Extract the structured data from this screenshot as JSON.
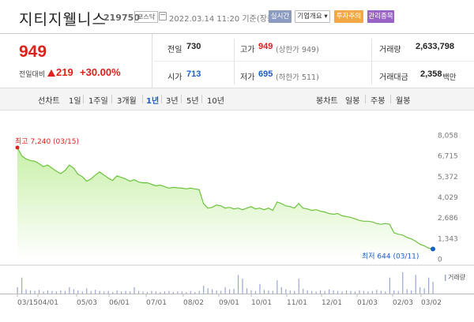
{
  "header": {
    "stock_name": "지티지웰니스",
    "stock_code": "219750",
    "market": "코스닥",
    "timestamp": "2022.03.14 11:20 기준(장중)",
    "realtime_label": "실시간",
    "company_label": "기업개요 ▾",
    "caution_label": "투자주의",
    "admin_label": "관리종목"
  },
  "price": {
    "current": "949",
    "change_label": "전일대비",
    "change_value": "219",
    "change_pct": "+30.00%"
  },
  "stats": {
    "prev_label": "전일",
    "prev_value": "730",
    "open_label": "시가",
    "open_value": "713",
    "high_label": "고가",
    "high_value": "949",
    "high_sub": "(상한가 949)",
    "low_label": "저가",
    "low_value": "695",
    "low_sub": "(하한가 511)",
    "volume_label": "거래량",
    "volume_value": "2,633,798",
    "amount_label": "거래대금",
    "amount_value": "2,358",
    "amount_unit": "백만"
  },
  "toolbar": {
    "line_chart_label": "선차트",
    "periods": [
      "1일",
      "1주일",
      "3개월",
      "1년",
      "3년",
      "5년",
      "10년"
    ],
    "active_period": "1년",
    "candle_label": "봉차트",
    "candles": [
      "일봉",
      "주봉",
      "월봉"
    ]
  },
  "colors": {
    "up": "#e0211b",
    "down": "#1a5fc7",
    "line": "#6cc43c",
    "fill_top": "#c8f0a8",
    "volume": "#9aa6d6"
  },
  "chart_data": {
    "type": "area",
    "y_ticks": [
      "8,058",
      "6,715",
      "5,372",
      "4,029",
      "2,686",
      "1,343",
      "0"
    ],
    "ylim": [
      0,
      8058
    ],
    "x_ticks": [
      "03/15",
      "04/01",
      "05/03",
      "06/01",
      "07/01",
      "08/02",
      "09/01",
      "10/01",
      "11/01",
      "12/01",
      "01/03",
      "02/03",
      "03/02"
    ],
    "annotations": {
      "high": {
        "label": "최고 7,240 (03/15)",
        "value": 7240
      },
      "low": {
        "label": "최저 644 (03/11)",
        "value": 644
      }
    },
    "volume_legend": "거래량",
    "price_series": [
      7240,
      6700,
      6500,
      6400,
      6350,
      6200,
      6000,
      6100,
      5900,
      5700,
      5550,
      5750,
      6100,
      5900,
      5500,
      5350,
      5050,
      5200,
      5450,
      5650,
      5450,
      5250,
      5100,
      5400,
      5300,
      5200,
      5050,
      5150,
      5000,
      4950,
      4950,
      4850,
      4750,
      4800,
      4700,
      4600,
      4650,
      4620,
      4600,
      4550,
      4600,
      4550,
      4500,
      3600,
      3300,
      3350,
      3500,
      3450,
      3300,
      3350,
      3250,
      3300,
      3200,
      3300,
      3400,
      3250,
      3300,
      3200,
      3300,
      3150,
      3700,
      3600,
      3450,
      3400,
      3300,
      3600,
      3300,
      3250,
      3150,
      3200,
      3100,
      3050,
      2950,
      2900,
      2950,
      2800,
      2750,
      2700,
      2600,
      2500,
      2450,
      2450,
      2400,
      2300,
      2250,
      2300,
      2250,
      1700,
      1600,
      1550,
      1400,
      1300,
      1150,
      950,
      850,
      700,
      644
    ],
    "volume_series": [
      12,
      30,
      8,
      6,
      5,
      7,
      4,
      6,
      5,
      4,
      6,
      5,
      12,
      8,
      6,
      4,
      10,
      5,
      7,
      5,
      4,
      5,
      3,
      6,
      4,
      5,
      4,
      12,
      5,
      4,
      3,
      5,
      4,
      3,
      4,
      5,
      3,
      4,
      4,
      3,
      5,
      3,
      5,
      15,
      10,
      8,
      6,
      5,
      12,
      8,
      9,
      35,
      28,
      10,
      6,
      5,
      18,
      7,
      6,
      5,
      25,
      12,
      8,
      6,
      5,
      28,
      9,
      6,
      5,
      4,
      6,
      5,
      8,
      6,
      5,
      4,
      6,
      5,
      4,
      6,
      5,
      4,
      5,
      7,
      5,
      4,
      30,
      6,
      5,
      40,
      8,
      6,
      35,
      12,
      10,
      30,
      22
    ]
  }
}
